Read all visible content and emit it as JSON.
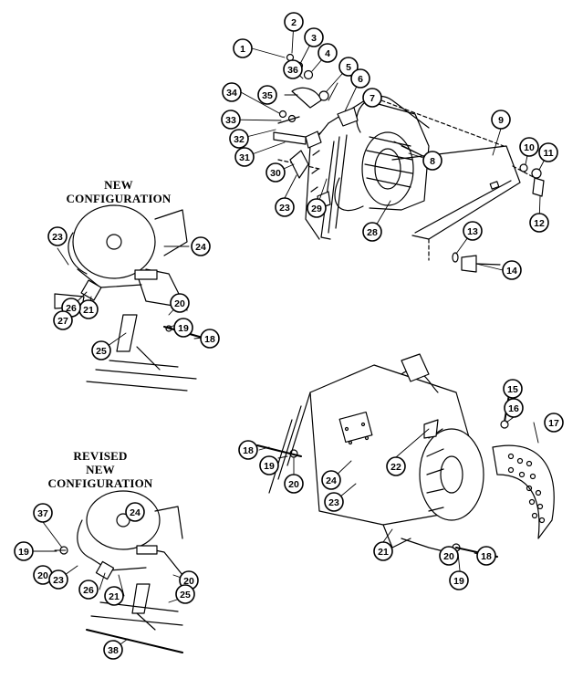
{
  "captions": {
    "new_configuration": {
      "line1": "NEW",
      "line2": "CONFIGURATION"
    },
    "revised_new_configuration": {
      "line1": "REVISED",
      "line2": "NEW",
      "line3": "CONFIGURATION"
    }
  },
  "views": {
    "top_right": {
      "callouts": [
        "1",
        "2",
        "3",
        "4",
        "5",
        "6",
        "7",
        "8",
        "9",
        "10",
        "11",
        "12",
        "13",
        "14",
        "23",
        "28",
        "29",
        "30",
        "31",
        "32",
        "33",
        "34",
        "35",
        "36"
      ]
    },
    "new_configuration": {
      "callouts": [
        "18",
        "19",
        "20",
        "21",
        "23",
        "24",
        "25",
        "26",
        "27"
      ]
    },
    "bottom_right": {
      "callouts": [
        "15",
        "16",
        "17",
        "18",
        "19",
        "20",
        "21",
        "22",
        "23",
        "24"
      ]
    },
    "revised_new_configuration": {
      "callouts": [
        "19",
        "20",
        "20",
        "21",
        "23",
        "24",
        "25",
        "26",
        "37",
        "38"
      ]
    }
  }
}
